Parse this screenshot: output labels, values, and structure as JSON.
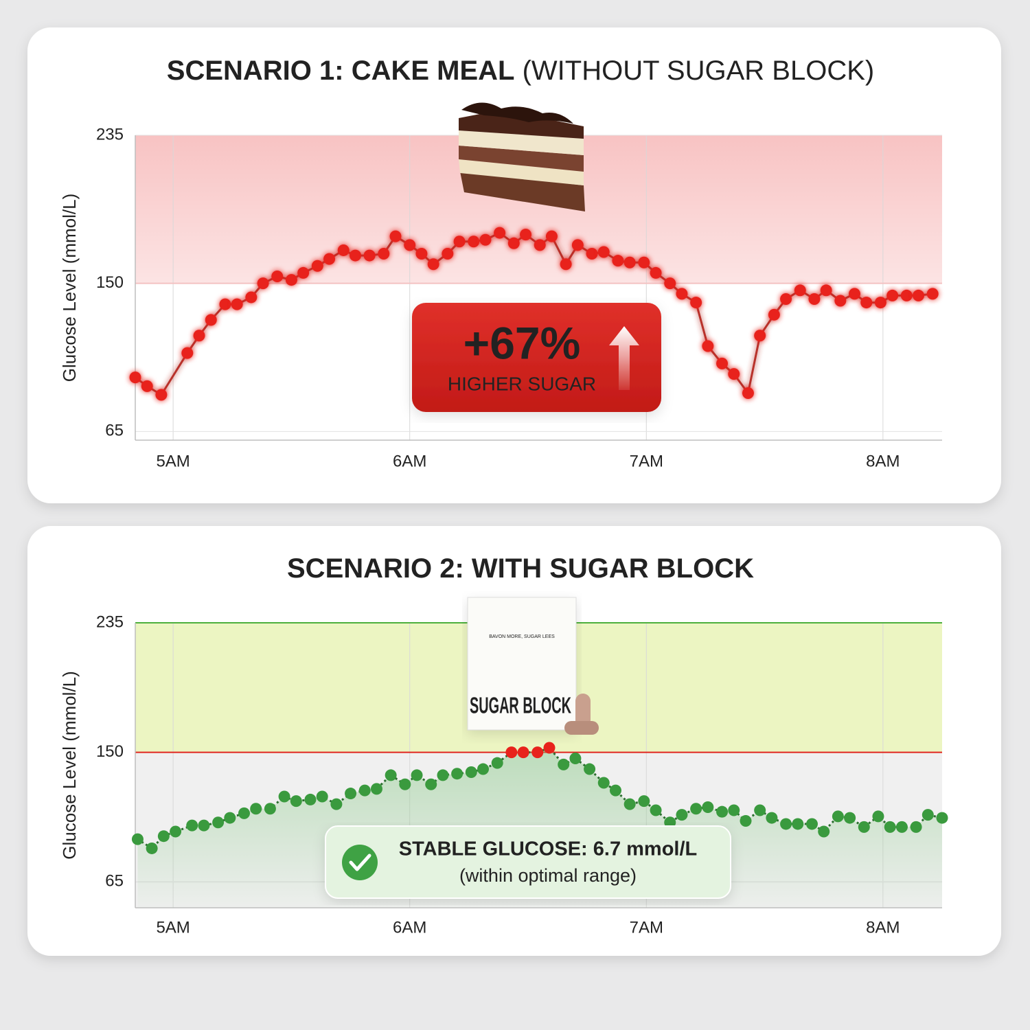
{
  "chart_data": [
    {
      "type": "line",
      "title": "SCENARIO 1: CAKE MEAL",
      "subtitle": "(WITHOUT SUGAR BLOCK)",
      "y_label": "Glucose Level (mmol/L)",
      "x": [
        4.84,
        4.89,
        4.95,
        5.06,
        5.11,
        5.16,
        5.22,
        5.27,
        5.33,
        5.38,
        5.44,
        5.5,
        5.55,
        5.61,
        5.66,
        5.72,
        5.77,
        5.83,
        5.89,
        5.94,
        6.0,
        6.05,
        6.1,
        6.16,
        6.21,
        6.27,
        6.32,
        6.38,
        6.44,
        6.49,
        6.55,
        6.6,
        6.66,
        6.71,
        6.77,
        6.82,
        6.88,
        6.93,
        6.99,
        7.04,
        7.1,
        7.15,
        7.21,
        7.26,
        7.32,
        7.37,
        7.43,
        7.48,
        7.54,
        7.59,
        7.65,
        7.71,
        7.76,
        7.82,
        7.88,
        7.93,
        7.99,
        8.04,
        8.1,
        8.15,
        8.21
      ],
      "values": [
        96,
        91,
        86,
        110,
        120,
        129,
        138,
        138,
        142,
        150,
        154,
        152,
        156,
        160,
        164,
        169,
        166,
        166,
        167,
        177,
        172,
        167,
        161,
        167,
        174,
        174,
        175,
        179,
        173,
        178,
        172,
        177,
        161,
        172,
        167,
        168,
        163,
        162,
        162,
        156,
        150,
        144,
        139,
        114,
        104,
        98,
        87,
        120,
        132,
        141,
        146,
        141,
        146,
        140,
        144,
        139,
        139,
        143,
        143,
        143,
        144
      ],
      "xlim": [
        4.84,
        8.25
      ],
      "xticks": [
        {
          "value": 5,
          "label": "5AM"
        },
        {
          "value": 6,
          "label": "6AM"
        },
        {
          "value": 7,
          "label": "7AM"
        },
        {
          "value": 8,
          "label": "8AM"
        }
      ],
      "ylim": [
        60,
        235
      ],
      "yticks": [
        65,
        150,
        235
      ],
      "threshold": 150,
      "threshold_label_color": "#d32a22",
      "threshold_line_color": "#f3c2c2",
      "band_color": "#f8c3c3",
      "color": "#e8231c",
      "line_color": "#b8302a",
      "glow": true,
      "grid": true,
      "annotation": {
        "headline": "+67%",
        "caption": "HIGHER SUGAR",
        "color": "#d42620"
      }
    },
    {
      "type": "line",
      "title": "SCENARIO 2: WITH SUGAR BLOCK",
      "y_label": "Glucose Level (mmol/L)",
      "x": [
        4.85,
        4.91,
        4.96,
        5.01,
        5.08,
        5.13,
        5.19,
        5.24,
        5.3,
        5.35,
        5.41,
        5.47,
        5.52,
        5.58,
        5.63,
        5.69,
        5.75,
        5.81,
        5.86,
        5.92,
        5.98,
        6.03,
        6.09,
        6.14,
        6.2,
        6.26,
        6.31,
        6.37,
        6.43,
        6.48,
        6.54,
        6.59,
        6.65,
        6.7,
        6.76,
        6.82,
        6.87,
        6.93,
        6.99,
        7.04,
        7.1,
        7.15,
        7.21,
        7.26,
        7.32,
        7.37,
        7.42,
        7.48,
        7.53,
        7.59,
        7.64,
        7.7,
        7.75,
        7.81,
        7.86,
        7.92,
        7.98,
        8.03,
        8.08,
        8.14,
        8.19,
        8.25
      ],
      "values": [
        93,
        87,
        95,
        98,
        102,
        102,
        104,
        107,
        110,
        113,
        113,
        121,
        118,
        119,
        121,
        116,
        123,
        125,
        126,
        135,
        129,
        135,
        129,
        135,
        136,
        137,
        139,
        143,
        150,
        150,
        150,
        153,
        142,
        146,
        139,
        130,
        125,
        116,
        118,
        112,
        104,
        109,
        113,
        114,
        111,
        112,
        105,
        112,
        107,
        103,
        103,
        103,
        98,
        108,
        107,
        101,
        108,
        101,
        101,
        101,
        109,
        107
      ],
      "xlim": [
        4.84,
        8.25
      ],
      "xticks": [
        {
          "value": 5,
          "label": "5AM"
        },
        {
          "value": 6,
          "label": "6AM"
        },
        {
          "value": 7,
          "label": "7AM"
        },
        {
          "value": 8,
          "label": "8AM"
        }
      ],
      "ylim": [
        48,
        235
      ],
      "yticks": [
        65,
        150,
        235
      ],
      "threshold": 150,
      "threshold_label_color": "#d32a22",
      "threshold_line_color": "#e0261f",
      "band_color": "#ecf5c2",
      "band_edge_color": "#4caf3c",
      "color": "#3a9a3e",
      "above_color": "#e8231c",
      "line_color": "#2b6e2f",
      "line_style": "dotted",
      "area": true,
      "grid": true,
      "product": {
        "tagline": "BAVON MORE, SUGAR LEES",
        "name": "SUGAR BLOCK"
      },
      "annotation": {
        "headline": "STABLE GLUCOSE: 6.7 mmol/L",
        "caption": "(within optimal range)",
        "color": "#e4f3e0"
      }
    }
  ]
}
